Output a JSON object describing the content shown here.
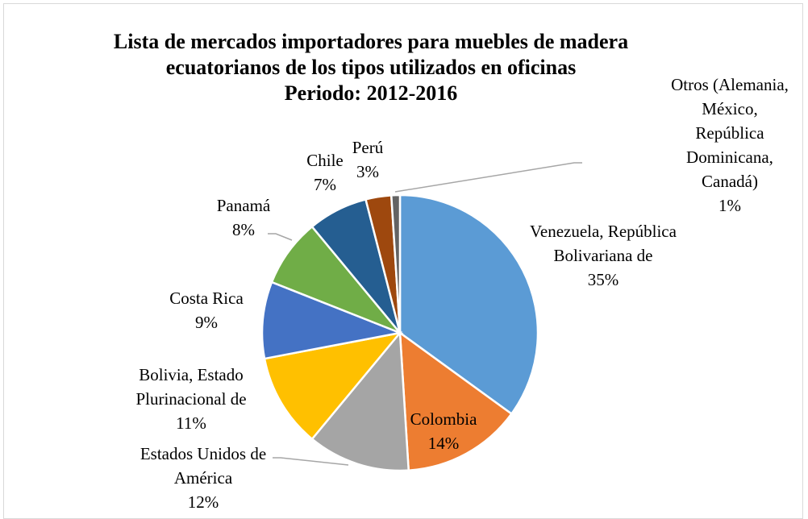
{
  "chart_data": {
    "type": "pie",
    "title": "Lista de mercados importadores para muebles de madera ecuatorianos de los tipos utilizados en oficinas",
    "subtitle": "Periodo: 2012-2016",
    "categories": [
      "Venezuela, República Bolivariana de",
      "Colombia",
      "Estados Unidos de América",
      "Bolivia, Estado Plurinacional de",
      "Costa Rica",
      "Panamá",
      "Chile",
      "Perú",
      "Otros (Alemania, México, República Dominicana, Canadá)"
    ],
    "values": [
      35,
      14,
      12,
      11,
      9,
      8,
      7,
      3,
      1
    ],
    "value_labels": [
      "35%",
      "14%",
      "12%",
      "11%",
      "9%",
      "8%",
      "7%",
      "3%",
      "1%"
    ],
    "colors": [
      "#5b9bd5",
      "#ed7d31",
      "#a5a5a5",
      "#ffc000",
      "#4472c4",
      "#70ad47",
      "#255e91",
      "#9e480e",
      "#636363"
    ]
  }
}
